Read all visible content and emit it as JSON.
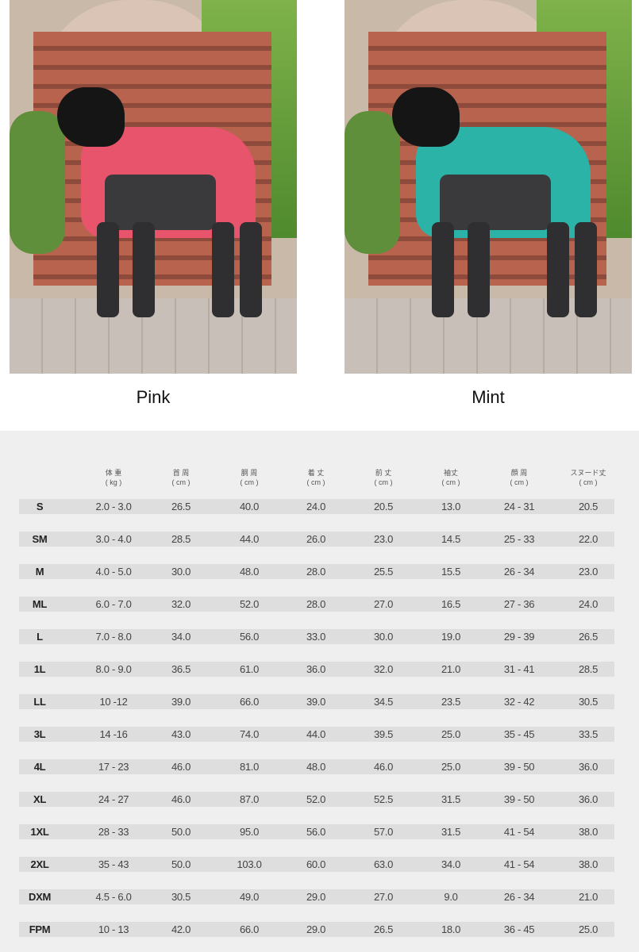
{
  "variants": [
    {
      "label": "Pink",
      "coat_color": "#e8546b"
    },
    {
      "label": "Mint",
      "coat_color": "#2bb3a8"
    }
  ],
  "size_table": {
    "headers": [
      {
        "name": "体 重",
        "unit": "( kg )"
      },
      {
        "name": "首 周",
        "unit": "( cm )"
      },
      {
        "name": "胴 周",
        "unit": "( cm )"
      },
      {
        "name": "着 丈",
        "unit": "( cm )"
      },
      {
        "name": "前 丈",
        "unit": "( cm )"
      },
      {
        "name": "袖丈",
        "unit": "( cm )"
      },
      {
        "name": "顔 周",
        "unit": "( cm )"
      },
      {
        "name": "スヌード丈",
        "unit": "( cm )"
      }
    ],
    "rows": [
      [
        "S",
        "2.0 - 3.0",
        "26.5",
        "40.0",
        "24.0",
        "20.5",
        "13.0",
        "24 - 31",
        "20.5"
      ],
      [
        "SM",
        "3.0 - 4.0",
        "28.5",
        "44.0",
        "26.0",
        "23.0",
        "14.5",
        "25 - 33",
        "22.0"
      ],
      [
        "M",
        "4.0 - 5.0",
        "30.0",
        "48.0",
        "28.0",
        "25.5",
        "15.5",
        "26 - 34",
        "23.0"
      ],
      [
        "ML",
        "6.0 - 7.0",
        "32.0",
        "52.0",
        "28.0",
        "27.0",
        "16.5",
        "27 - 36",
        "24.0"
      ],
      [
        "L",
        "7.0 - 8.0",
        "34.0",
        "56.0",
        "33.0",
        "30.0",
        "19.0",
        "29 - 39",
        "26.5"
      ],
      [
        "1L",
        "8.0 - 9.0",
        "36.5",
        "61.0",
        "36.0",
        "32.0",
        "21.0",
        "31 - 41",
        "28.5"
      ],
      [
        "LL",
        "10 -12",
        "39.0",
        "66.0",
        "39.0",
        "34.5",
        "23.5",
        "32 - 42",
        "30.5"
      ],
      [
        "3L",
        "14 -16",
        "43.0",
        "74.0",
        "44.0",
        "39.5",
        "25.0",
        "35 - 45",
        "33.5"
      ],
      [
        "4L",
        "17 - 23",
        "46.0",
        "81.0",
        "48.0",
        "46.0",
        "25.0",
        "39 - 50",
        "36.0"
      ],
      [
        "XL",
        "24 - 27",
        "46.0",
        "87.0",
        "52.0",
        "52.5",
        "31.5",
        "39 - 50",
        "36.0"
      ],
      [
        "1XL",
        "28 - 33",
        "50.0",
        "95.0",
        "56.0",
        "57.0",
        "31.5",
        "41 - 54",
        "38.0"
      ],
      [
        "2XL",
        "35 - 43",
        "50.0",
        "103.0",
        "60.0",
        "63.0",
        "34.0",
        "41 - 54",
        "38.0"
      ],
      [
        "DXM",
        "4.5 - 6.0",
        "30.5",
        "49.0",
        "29.0",
        "27.0",
        "9.0",
        "26 - 34",
        "21.0"
      ],
      [
        "FPM",
        "10 - 13",
        "42.0",
        "66.0",
        "29.0",
        "26.5",
        "18.0",
        "36 - 45",
        "25.0"
      ]
    ]
  }
}
